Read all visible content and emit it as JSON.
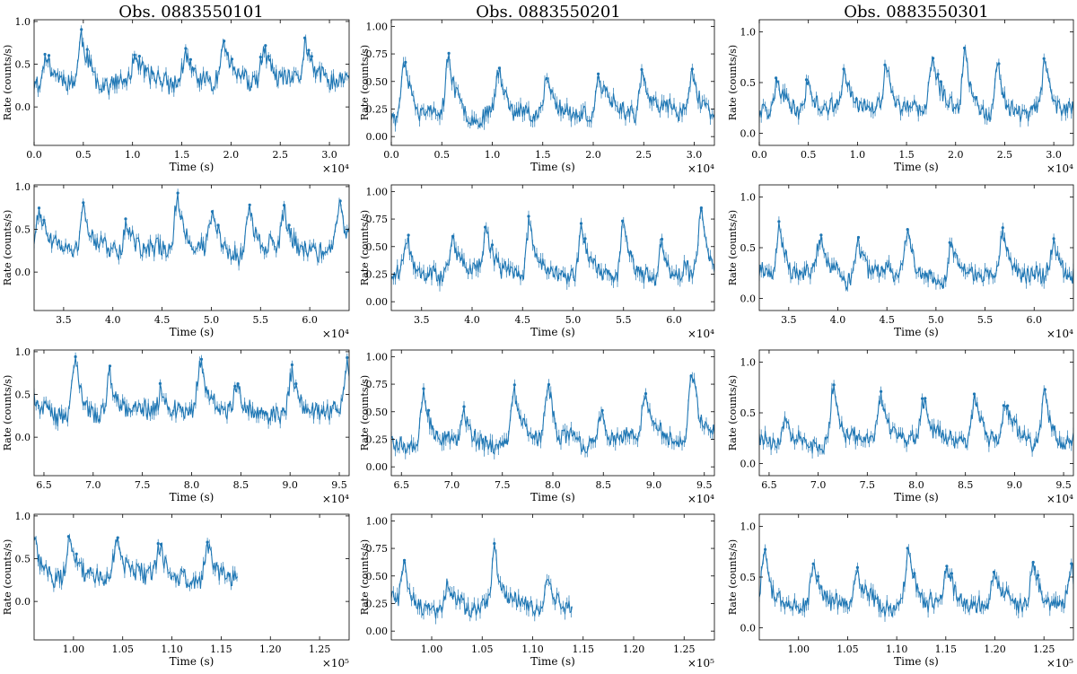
{
  "chart_data": {
    "type": "line",
    "line_color": "#1f77b4",
    "grid": false,
    "ylabel": "Rate (counts/s)",
    "xlabel": "Time (s)",
    "columns": [
      {
        "title": "Obs. 0883550101",
        "seed": 11,
        "segment_end": 116700,
        "ylim": [
          -0.45,
          1.02
        ],
        "yticks": [
          0.0,
          0.5,
          1.0
        ],
        "ytick_labels": [
          "0.0",
          "0.5",
          "1.0"
        ],
        "baseline": 0.27,
        "peak": 0.5,
        "noise": 0.11,
        "peak_period": 4600
      },
      {
        "title": "Obs. 0883550201",
        "seed": 23,
        "segment_end": 113900,
        "ylim": [
          -0.08,
          1.06
        ],
        "yticks": [
          0.0,
          0.25,
          0.5,
          0.75,
          1.0
        ],
        "ytick_labels": [
          "0.00",
          "0.25",
          "0.50",
          "0.75",
          "1.00"
        ],
        "baseline": 0.22,
        "peak": 0.48,
        "noise": 0.07,
        "peak_period": 4300
      },
      {
        "title": "Obs. 0883550301",
        "seed": 37,
        "segment_end": 128000,
        "ylim": [
          -0.12,
          1.12
        ],
        "yticks": [
          0.0,
          0.5,
          1.0
        ],
        "ytick_labels": [
          "0.0",
          "0.5",
          "1.0"
        ],
        "baseline": 0.22,
        "peak": 0.52,
        "noise": 0.08,
        "peak_period": 4200
      }
    ],
    "rows": [
      {
        "xlim": [
          0,
          32000
        ],
        "xticks": [
          0,
          5000,
          10000,
          15000,
          20000,
          25000,
          30000
        ],
        "xtick_labels": [
          "0.0",
          "0.5",
          "1.0",
          "1.5",
          "2.0",
          "2.5",
          "3.0"
        ],
        "offset_label": "×10⁴"
      },
      {
        "xlim": [
          32000,
          64000
        ],
        "xticks": [
          35000,
          40000,
          45000,
          50000,
          55000,
          60000
        ],
        "xtick_labels": [
          "3.5",
          "4.0",
          "4.5",
          "5.0",
          "5.5",
          "6.0"
        ],
        "offset_label": "×10⁴"
      },
      {
        "xlim": [
          64000,
          96000
        ],
        "xticks": [
          65000,
          70000,
          75000,
          80000,
          85000,
          90000,
          95000
        ],
        "xtick_labels": [
          "6.5",
          "7.0",
          "7.5",
          "8.0",
          "8.5",
          "9.0",
          "9.5"
        ],
        "offset_label": "×10⁴"
      },
      {
        "xlim": [
          96000,
          128000
        ],
        "xticks": [
          100000,
          105000,
          110000,
          115000,
          120000,
          125000
        ],
        "xtick_labels": [
          "1.00",
          "1.05",
          "1.10",
          "1.15",
          "1.20",
          "1.25"
        ],
        "offset_label": "×10⁵"
      }
    ],
    "sample_step_s": 100
  }
}
